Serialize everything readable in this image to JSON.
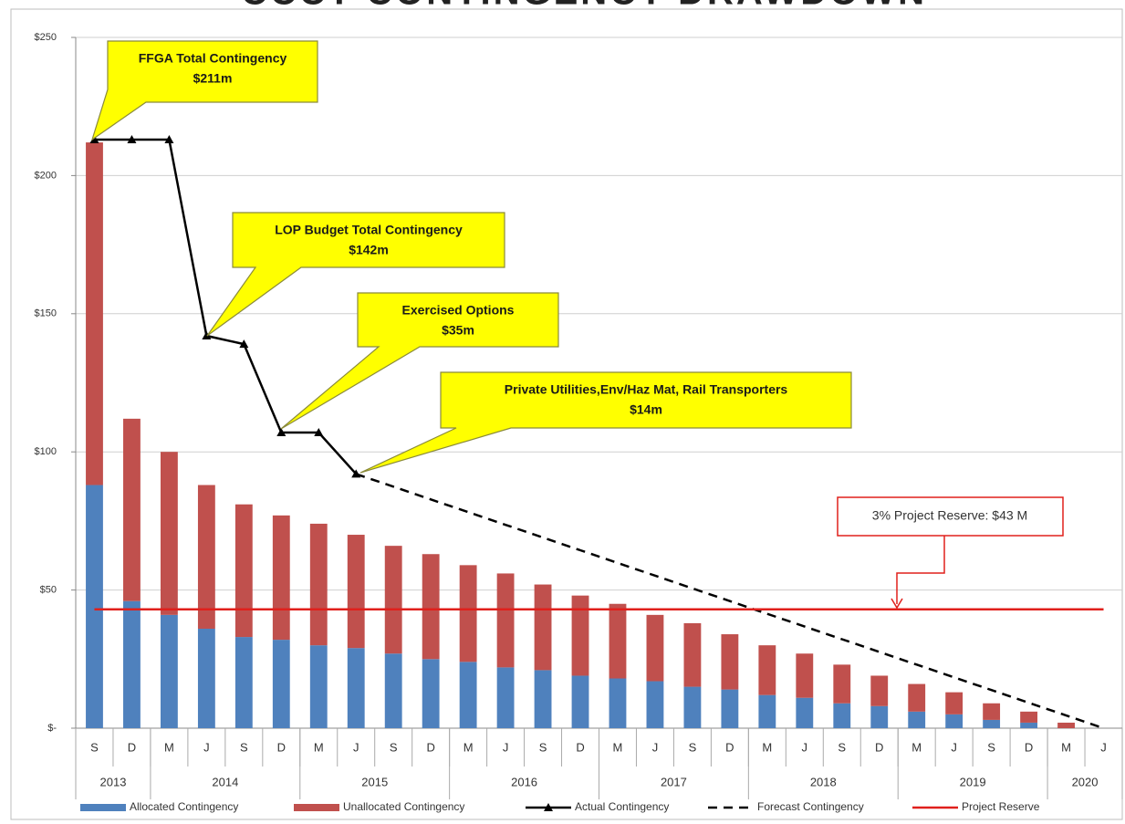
{
  "chart_data": {
    "type": "bar",
    "title": "CCCT CONTINGENCY DRAWDOWN",
    "categories": [
      "S",
      "D",
      "M",
      "J",
      "S",
      "D",
      "M",
      "J",
      "S",
      "D",
      "M",
      "J",
      "S",
      "D",
      "M",
      "J",
      "S",
      "D",
      "M",
      "J",
      "S",
      "D",
      "M",
      "J",
      "S",
      "D",
      "M",
      "J"
    ],
    "years": [
      "2013",
      null,
      "2014",
      null,
      null,
      null,
      "2015",
      null,
      null,
      null,
      "2016",
      null,
      null,
      null,
      "2017",
      null,
      null,
      null,
      "2018",
      null,
      null,
      null,
      "2019",
      null,
      null,
      null,
      "2020",
      null
    ],
    "ylim": [
      0,
      250
    ],
    "yticks": [
      {
        "value": 0,
        "label": "$-"
      },
      {
        "value": 50,
        "label": "$50"
      },
      {
        "value": 100,
        "label": "$100"
      },
      {
        "value": 150,
        "label": "$150"
      },
      {
        "value": 200,
        "label": "$200"
      },
      {
        "value": 250,
        "label": "$250"
      }
    ],
    "grid": true,
    "series": [
      {
        "name": "Allocated Contingency",
        "mark": "bar",
        "color": "#4f81bd",
        "values": [
          88,
          46,
          41,
          36,
          33,
          32,
          30,
          29,
          27,
          25,
          24,
          22,
          21,
          19,
          18,
          17,
          15,
          14,
          12,
          11,
          9,
          8,
          6,
          5,
          3,
          2,
          0,
          0
        ]
      },
      {
        "name": "Unallocated Contingency",
        "mark": "bar",
        "color": "#c0504d",
        "values": [
          124,
          66,
          59,
          52,
          48,
          45,
          44,
          41,
          39,
          38,
          35,
          34,
          31,
          29,
          27,
          24,
          23,
          20,
          18,
          16,
          14,
          11,
          10,
          8,
          6,
          4,
          2,
          0
        ]
      },
      {
        "name": "Actual Contingency",
        "mark": "line",
        "color": "#000000",
        "dash": false,
        "markers": true,
        "values": [
          213,
          213,
          213,
          142,
          139,
          107,
          107,
          92,
          null,
          null,
          null,
          null,
          null,
          null,
          null,
          null,
          null,
          null,
          null,
          null,
          null,
          null,
          null,
          null,
          null,
          null,
          null,
          null
        ]
      },
      {
        "name": "Forecast Contingency",
        "mark": "line",
        "color": "#000000",
        "dash": true,
        "markers": false,
        "values": [
          null,
          null,
          null,
          null,
          null,
          null,
          null,
          92,
          87.4,
          82.8,
          78.2,
          73.6,
          69,
          64.4,
          59.8,
          55.2,
          50.6,
          46,
          41.4,
          36.8,
          32.2,
          27.6,
          23,
          18.4,
          13.8,
          9.2,
          4.6,
          0
        ]
      },
      {
        "name": "Project Reserve",
        "mark": "line",
        "color": "#e0201c",
        "dash": false,
        "markers": false,
        "values": [
          43,
          43,
          43,
          43,
          43,
          43,
          43,
          43,
          43,
          43,
          43,
          43,
          43,
          43,
          43,
          43,
          43,
          43,
          43,
          43,
          43,
          43,
          43,
          43,
          43,
          43,
          43,
          43
        ]
      }
    ],
    "annotations": [
      {
        "lines": [
          "FFGA Total Contingency",
          "$211m"
        ]
      },
      {
        "lines": [
          "LOP Budget Total Contingency",
          "$142m"
        ]
      },
      {
        "lines": [
          "Exercised Options",
          "$35m"
        ]
      },
      {
        "lines": [
          "Private Utilities,Env/Haz Mat, Rail Transporters",
          "$14m"
        ]
      },
      {
        "lines": [
          "3% Project Reserve: $43 M"
        ]
      }
    ]
  }
}
